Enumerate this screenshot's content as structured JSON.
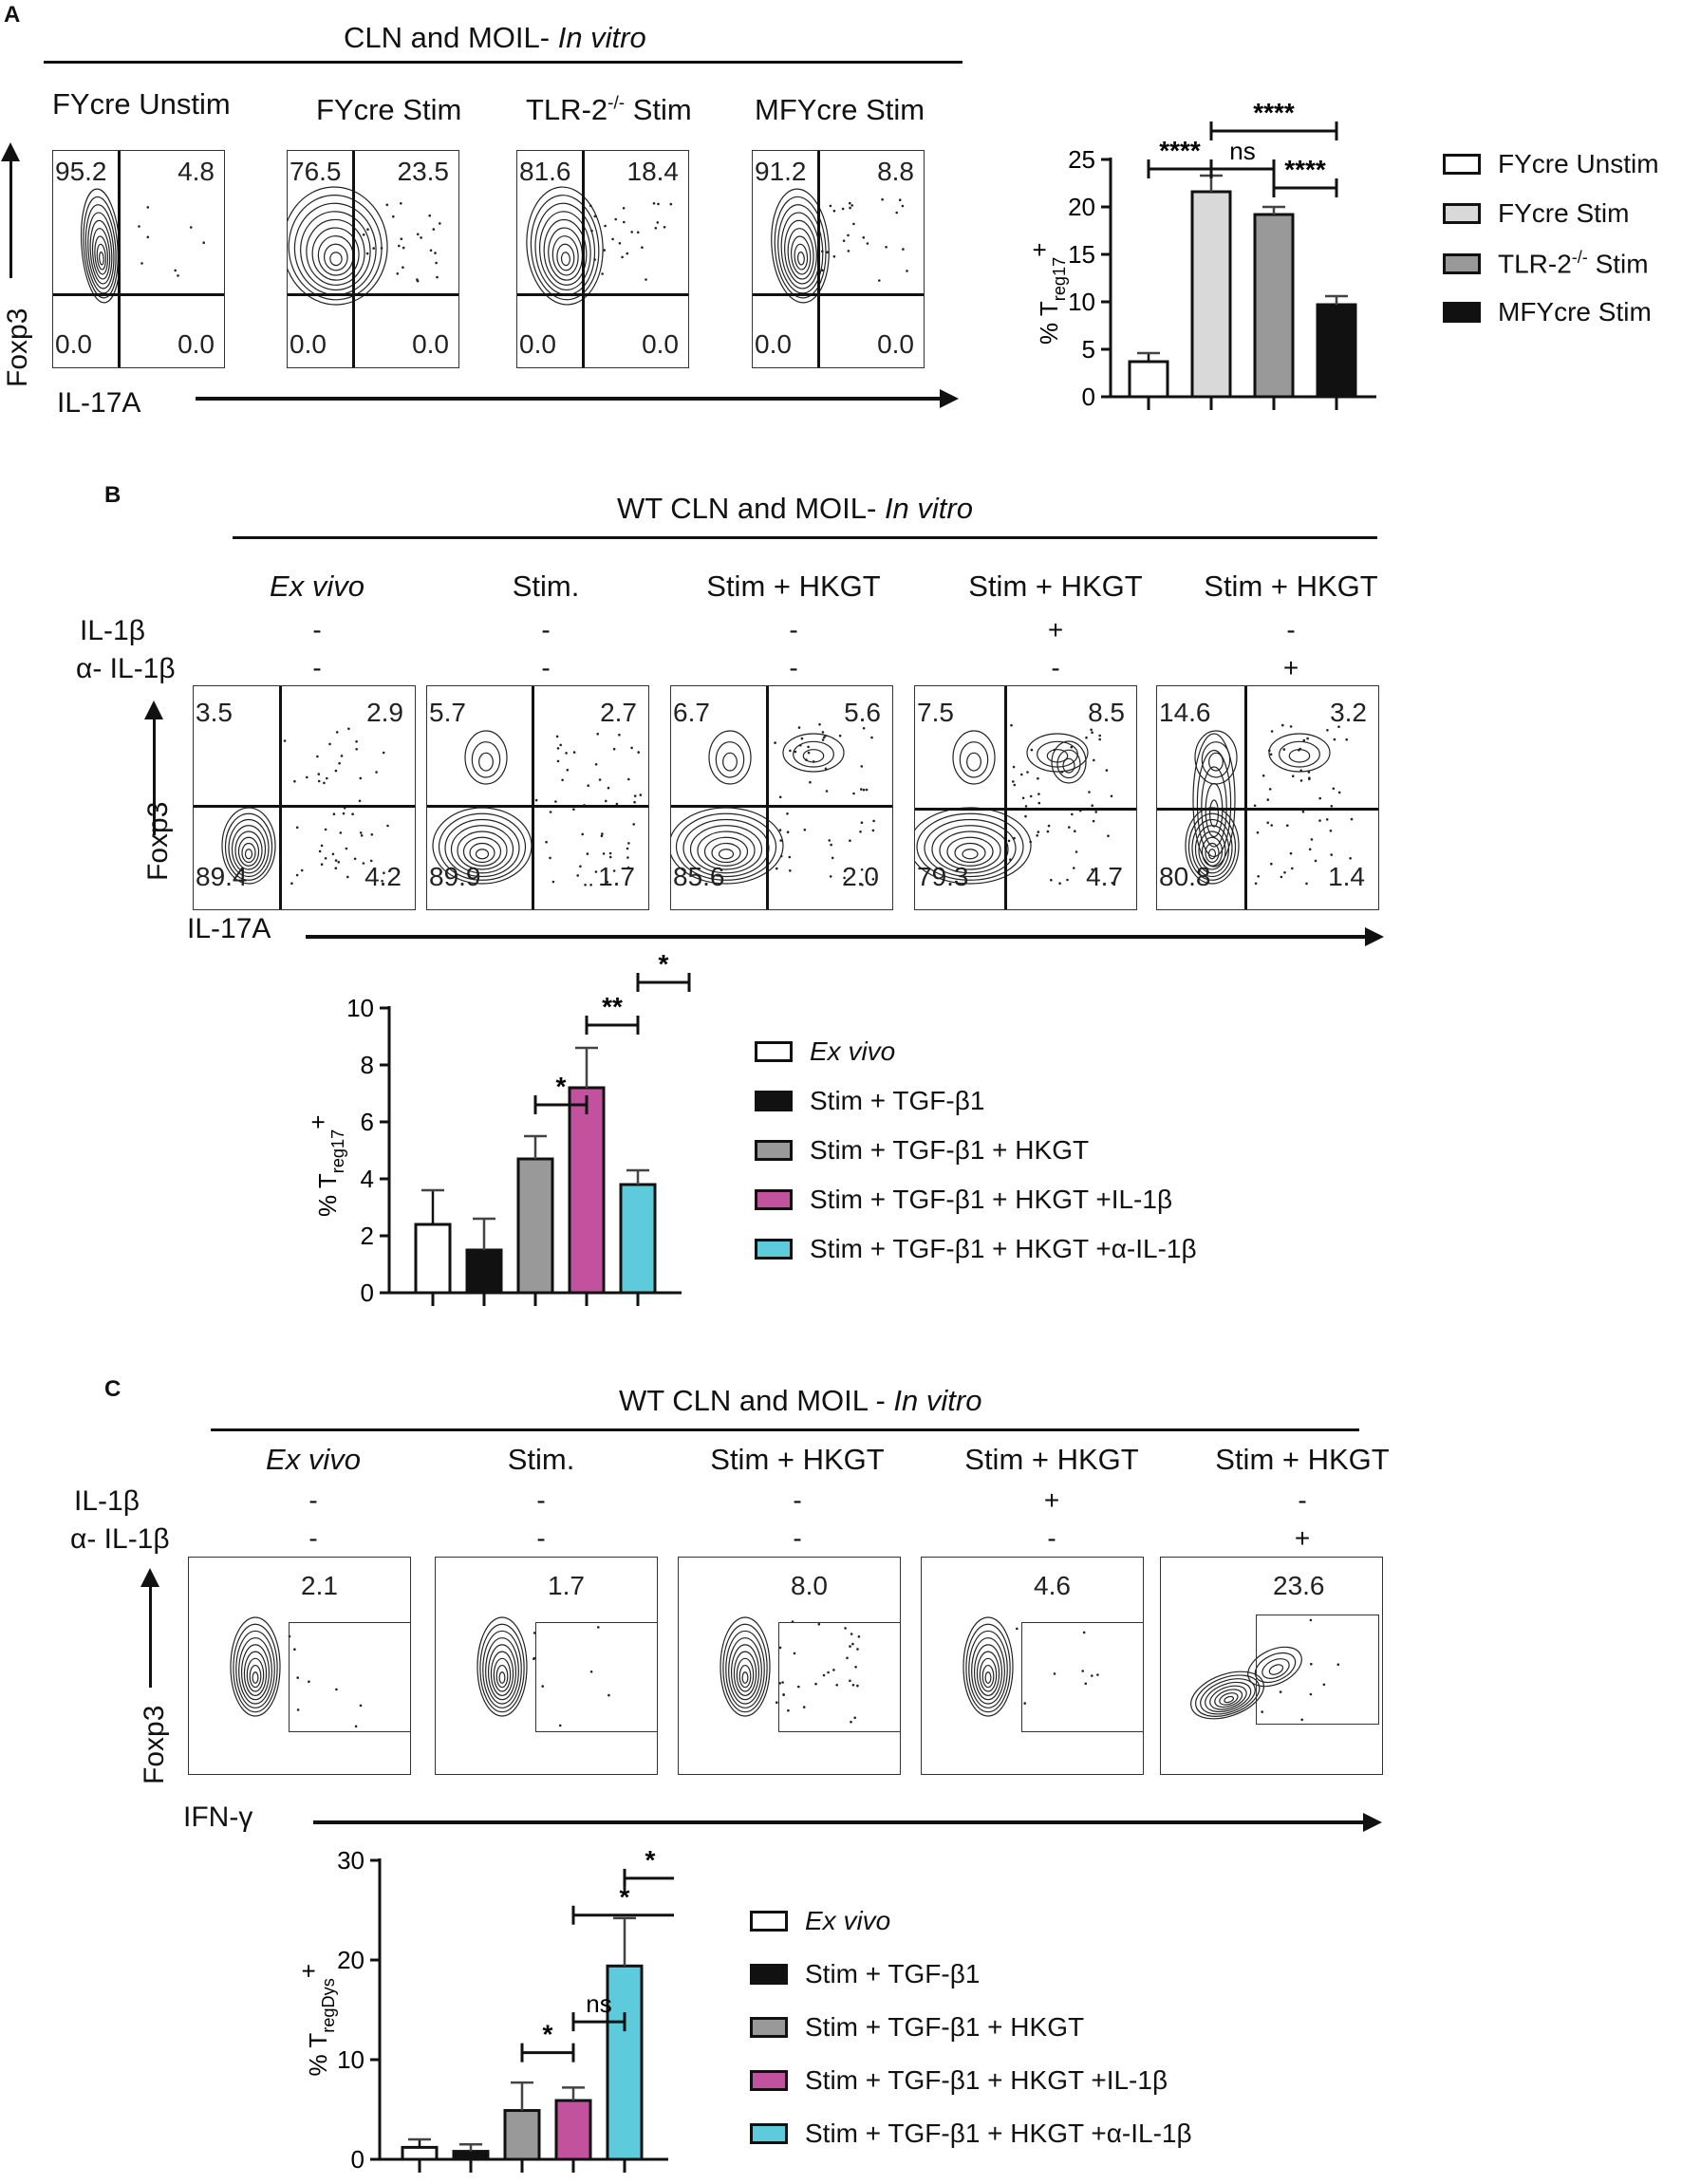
{
  "panel_a": {
    "letter": "A",
    "header_main": "CLN and MOIL- ",
    "header_italic": "In vitro",
    "columns": [
      "FYcre Unstim",
      "FYcre Stim",
      "TLR-2",
      "MFYcre Stim"
    ],
    "tlr_sup": "-/-",
    "tlr_rest": " Stim",
    "y_axis": "Foxp3",
    "x_axis": "IL-17A",
    "quadrants": [
      {
        "ul": "95.2",
        "ur": "4.8",
        "ll": "0.0",
        "lr": "0.0"
      },
      {
        "ul": "76.5",
        "ur": "23.5",
        "ll": "0.0",
        "lr": "0.0"
      },
      {
        "ul": "81.6",
        "ur": "18.4",
        "ll": "0.0",
        "lr": "0.0"
      },
      {
        "ul": "91.2",
        "ur": "8.8",
        "ll": "0.0",
        "lr": "0.0"
      }
    ],
    "legend": [
      "FYcre Unstim",
      "FYcre Stim",
      "TLR-2",
      "MFYcre Stim"
    ]
  },
  "panel_b": {
    "letter": "B",
    "header_main": "WT CLN and MOIL- ",
    "header_italic": "In vitro",
    "columns": [
      "Ex vivo",
      "Stim.",
      "Stim + HKGT",
      "Stim + HKGT",
      "Stim + HKGT"
    ],
    "row1_label": "IL-1β",
    "row2_label": "α- IL-1β",
    "row1": [
      "-",
      "-",
      "-",
      "+",
      "-"
    ],
    "row2": [
      "-",
      "-",
      "-",
      "-",
      "+"
    ],
    "y_axis": "Foxp3",
    "x_axis": "IL-17A",
    "quadrants": [
      {
        "ul": "3.5",
        "ur": "2.9",
        "ll": "89.4",
        "lr": "4.2"
      },
      {
        "ul": "5.7",
        "ur": "2.7",
        "ll": "89.9",
        "lr": "1.7"
      },
      {
        "ul": "6.7",
        "ur": "5.6",
        "ll": "85.6",
        "lr": "2.0"
      },
      {
        "ul": "7.5",
        "ur": "8.5",
        "ll": "79.3",
        "lr": "4.7"
      },
      {
        "ul": "14.6",
        "ur": "3.2",
        "ll": "80.8",
        "lr": "1.4"
      }
    ],
    "legend": [
      "Ex vivo",
      "Stim + TGF-β1",
      "Stim + TGF-β1 + HKGT",
      "Stim + TGF-β1 + HKGT +IL-1β",
      "Stim + TGF-β1 + HKGT +α-IL-1β"
    ]
  },
  "panel_c": {
    "letter": "C",
    "header_main": "WT CLN and MOIL - ",
    "header_italic": "In vitro",
    "columns": [
      "Ex vivo",
      "Stim.",
      "Stim + HKGT",
      "Stim + HKGT",
      "Stim + HKGT"
    ],
    "row1_label": "IL-1β",
    "row2_label": "α- IL-1β",
    "row1": [
      "-",
      "-",
      "-",
      "+",
      "-"
    ],
    "row2": [
      "-",
      "-",
      "-",
      "-",
      "+"
    ],
    "y_axis": "Foxp3",
    "x_axis": "IFN-γ",
    "gates": [
      "2.1",
      "1.7",
      "8.0",
      "4.6",
      "23.6"
    ],
    "legend": [
      "Ex vivo",
      "Stim + TGF-β1",
      "Stim + TGF-β1 + HKGT",
      "Stim + TGF-β1 + HKGT +IL-1β",
      "Stim + TGF-β1 + HKGT +α-IL-1β"
    ]
  },
  "colors": {
    "white": "#ffffff",
    "light_grey": "#d9d9d9",
    "grey": "#999999",
    "black": "#111111",
    "magenta": "#c2519e",
    "cyan": "#5ecbdc"
  },
  "chart_data": [
    {
      "type": "bar",
      "panel": "A",
      "ylabel": "% Treg17+",
      "ylim": [
        0,
        25
      ],
      "yticks": [
        0,
        5,
        10,
        15,
        20,
        25
      ],
      "categories": [
        "FYcre Unstim",
        "FYcre Stim",
        "TLR-2-/- Stim",
        "MFYcre Stim"
      ],
      "values": [
        3.7,
        21.6,
        19.2,
        9.7
      ],
      "errors": [
        0.9,
        1.7,
        0.8,
        0.9
      ],
      "fills": [
        "#ffffff",
        "#d9d9d9",
        "#999999",
        "#111111"
      ],
      "significance": [
        {
          "from": 0,
          "to": 1,
          "label": "****",
          "level": 24
        },
        {
          "from": 1,
          "to": 2,
          "label": "ns",
          "level": 24
        },
        {
          "from": 2,
          "to": 3,
          "label": "****",
          "level": 22
        },
        {
          "from": 1,
          "to": 3,
          "label": "****",
          "level": 28
        }
      ]
    },
    {
      "type": "bar",
      "panel": "B",
      "ylabel": "% Treg17+",
      "ylim": [
        0,
        10
      ],
      "yticks": [
        0,
        2,
        4,
        6,
        8,
        10
      ],
      "categories": [
        "Ex vivo",
        "Stim + TGF-β1",
        "Stim + TGF-β1 + HKGT",
        "Stim + TGF-β1 + HKGT +IL-1β",
        "Stim + TGF-β1 + HKGT +α-IL-1β"
      ],
      "values": [
        2.4,
        1.5,
        4.7,
        7.2,
        3.8
      ],
      "errors": [
        1.2,
        1.1,
        0.8,
        1.4,
        0.5
      ],
      "fills": [
        "#ffffff",
        "#111111",
        "#999999",
        "#c2519e",
        "#5ecbdc"
      ],
      "significance": [
        {
          "from": 2,
          "to": 3,
          "label": "*",
          "level": 6.6
        },
        {
          "from": 3,
          "to": 4,
          "label": "**",
          "level": 9.4
        },
        {
          "from": 4,
          "to": 5,
          "label": "*",
          "level": 10.9
        }
      ]
    },
    {
      "type": "bar",
      "panel": "C",
      "ylabel": "% TregDys+",
      "ylim": [
        0,
        30
      ],
      "yticks": [
        0,
        10,
        20,
        30
      ],
      "categories": [
        "Ex vivo",
        "Stim + TGF-β1",
        "Stim + TGF-β1 + HKGT",
        "Stim + TGF-β1 + HKGT +IL-1β",
        "Stim + TGF-β1 + HKGT +α-IL-1β"
      ],
      "values": [
        1.2,
        0.8,
        4.9,
        5.9,
        19.4
      ],
      "errors": [
        0.8,
        0.7,
        2.8,
        1.3,
        4.8
      ],
      "fills": [
        "#ffffff",
        "#111111",
        "#999999",
        "#c2519e",
        "#5ecbdc"
      ],
      "significance": [
        {
          "from": 2,
          "to": 3,
          "label": "*",
          "level": 10.7
        },
        {
          "from": 3,
          "to": 4,
          "label": "ns",
          "level": 13.8
        },
        {
          "from": 3,
          "to": 5,
          "label": "*",
          "level": 24.5
        },
        {
          "from": 4,
          "to": 5,
          "label": "*",
          "level": 28.2
        }
      ]
    }
  ]
}
